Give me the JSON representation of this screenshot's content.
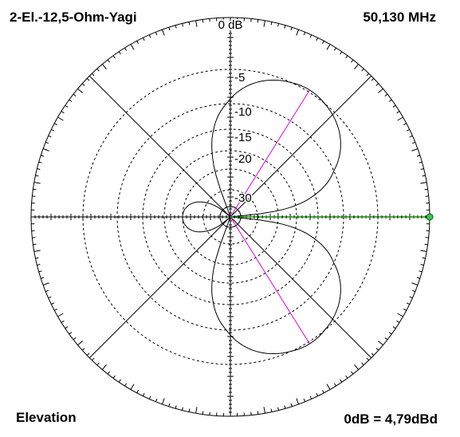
{
  "title": "2-El.-12,5-Ohm-Yagi",
  "frequency": "50,130 MHz",
  "view": "Elevation",
  "reference": "0dB = 4,79dBd",
  "colors": {
    "pattern": "#000000",
    "beam_marker": "#e000e0",
    "azimuth_marker": "#00a000",
    "grid": "#000000",
    "background": "#ffffff"
  },
  "chart_data": {
    "type": "polar",
    "scale": "dB",
    "ring_labels": [
      "0 dB",
      "-5",
      "-10",
      "-15",
      "-20",
      "-30"
    ],
    "ring_levels_db": [
      0,
      -5,
      -10,
      -15,
      -20,
      -25,
      -30,
      -35
    ],
    "radial_lines_deg": [
      0,
      45,
      90,
      135
    ],
    "grid": true,
    "pattern_lobes": [
      {
        "name": "",
        "peak_angle_deg": 58,
        "peak_db": -4.8,
        "half_width_deg": 54
      },
      {
        "name": "",
        "peak_angle_deg": -58,
        "peak_db": -4.8,
        "half_width_deg": 54
      },
      {
        "name": "",
        "peak_angle_deg": 180,
        "peak_db": -25,
        "half_width_deg": 50
      }
    ],
    "beam_marker_angles_deg": [
      58,
      -58
    ],
    "azimuth_marker_angle_deg": 0
  }
}
